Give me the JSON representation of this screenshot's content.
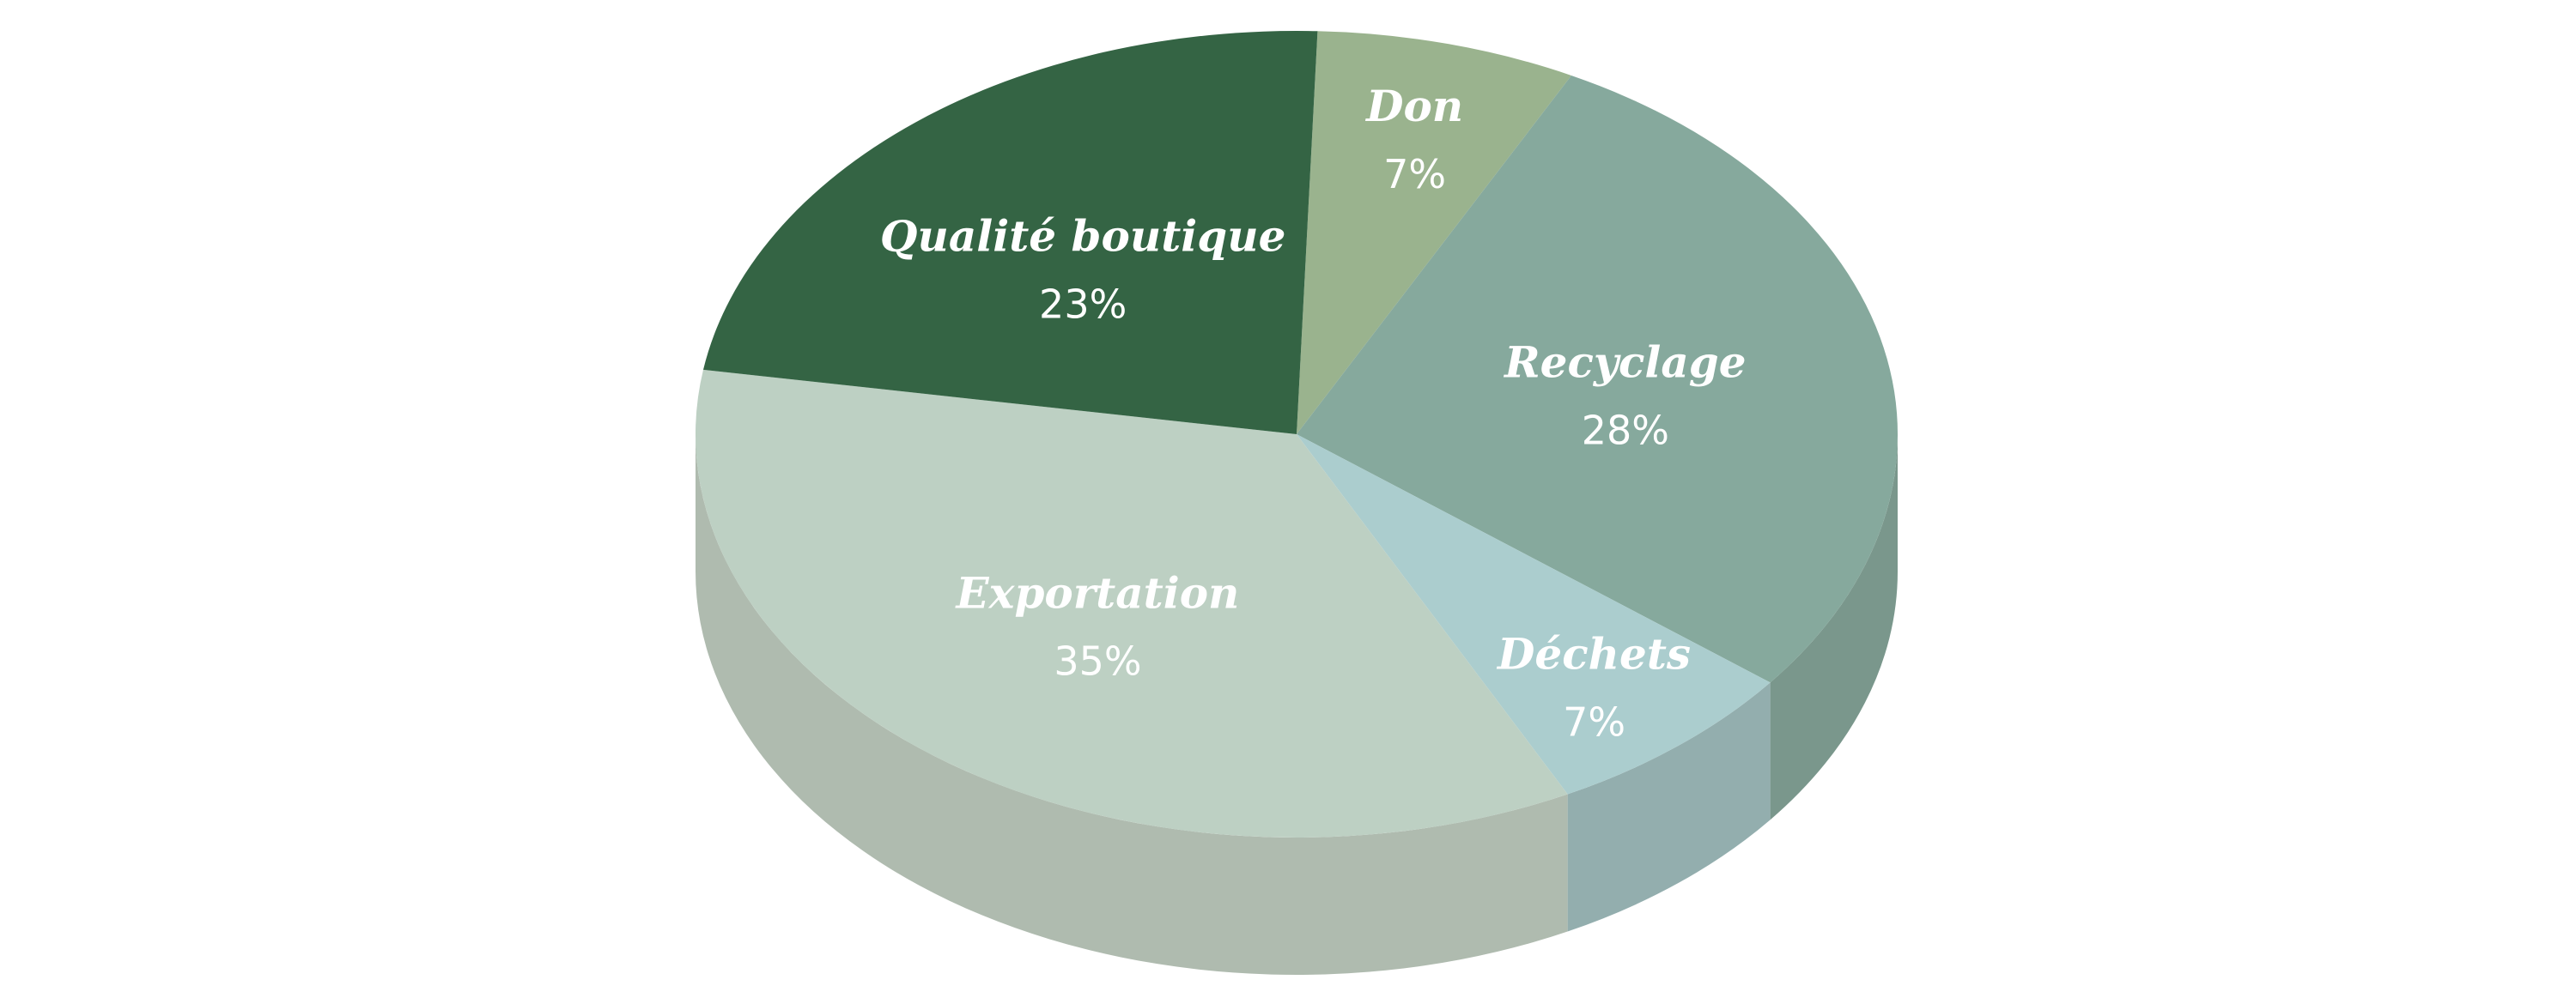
{
  "chart_data": {
    "type": "pie",
    "style": "3d",
    "title": "",
    "slices": [
      {
        "label": "Don",
        "value": 7,
        "display": "7%",
        "color": "#9ab38e",
        "side_color": "#86a07b"
      },
      {
        "label": "Recyclage",
        "value": 28,
        "display": "28%",
        "color": "#86a99d",
        "side_color": "#7a978c"
      },
      {
        "label": "Déchets",
        "value": 7,
        "display": "7%",
        "color": "#abcdce",
        "side_color": "#93aeae"
      },
      {
        "label": "Exportation",
        "value": 35,
        "display": "35%",
        "color": "#bdd0c3",
        "side_color": "#afbbaf"
      },
      {
        "label": "Qualité boutique",
        "value": 23,
        "display": "23%",
        "color": "#346444",
        "side_color": "#2c4d34"
      }
    ]
  }
}
